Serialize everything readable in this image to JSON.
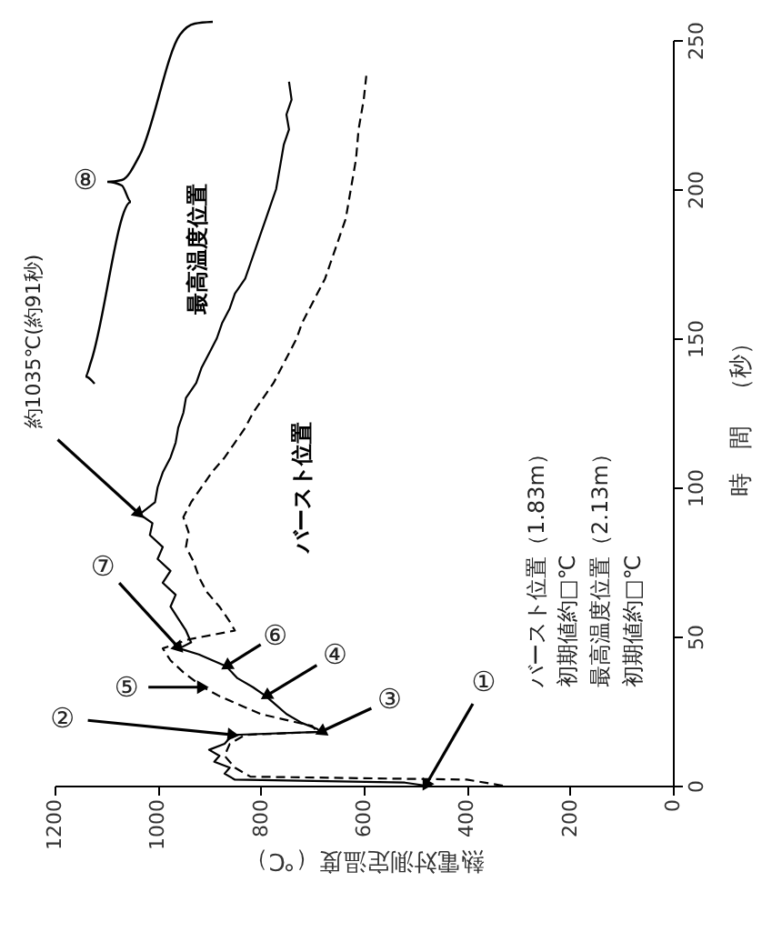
{
  "chart_data": {
    "type": "line",
    "xlabel": "熱電対測定温度（℃）",
    "ylabel": "時　間　（秒）",
    "xlim": [
      1200,
      0
    ],
    "xticks": [
      0,
      200,
      400,
      600,
      800,
      1000,
      1200
    ],
    "ylim": [
      0,
      250
    ],
    "yticks": [
      0,
      50,
      100,
      150,
      200,
      250
    ],
    "grid": false,
    "legend": false,
    "marker": "none",
    "series": [
      {
        "name": "最高温度位置",
        "color": "#000000",
        "line_style": "solid",
        "x": [
          480,
          520,
          850,
          870,
          860,
          890,
          880,
          900,
          870,
          860,
          853,
          684,
          690,
          720,
          750,
          770,
          790,
          815,
          845,
          867,
          920,
          958,
          935,
          945,
          960,
          975,
          965,
          990,
          975,
          1000,
          990,
          1015,
          1010,
          1035,
          1005,
          1000,
          990,
          975,
          965,
          960,
          950,
          945,
          925,
          915,
          900,
          885,
          875,
          860,
          850,
          830,
          820,
          810,
          800,
          790,
          780,
          770,
          765,
          760,
          755,
          745,
          750,
          740,
          745
        ],
        "values": [
          0,
          1,
          2,
          4,
          6,
          8,
          10,
          12,
          14,
          16,
          17,
          18,
          19,
          21,
          24,
          27,
          30,
          33,
          36,
          40,
          44,
          46,
          48,
          52,
          56,
          60,
          64,
          68,
          72,
          76,
          80,
          84,
          88,
          91,
          95,
          100,
          105,
          110,
          115,
          120,
          125,
          130,
          135,
          140,
          145,
          150,
          155,
          160,
          165,
          170,
          175,
          180,
          185,
          190,
          195,
          200,
          205,
          210,
          215,
          220,
          225,
          230,
          236
        ]
      },
      {
        "name": "バースト位置",
        "color": "#000000",
        "line_style": "dashed",
        "x": [
          330,
          400,
          820,
          850,
          870,
          860,
          830,
          690,
          700,
          800,
          880,
          912,
          950,
          975,
          990,
          940,
          850,
          860,
          880,
          905,
          920,
          930,
          945,
          940,
          950,
          935,
          915,
          895,
          870,
          850,
          830,
          815,
          795,
          775,
          760,
          745,
          730,
          720,
          705,
          690,
          675,
          665,
          655,
          645,
          635,
          630,
          625,
          615,
          610,
          600,
          595
        ],
        "values": [
          0,
          2,
          3,
          6,
          10,
          14,
          17,
          18,
          20,
          24,
          30,
          33,
          38,
          42,
          46,
          49,
          52,
          55,
          60,
          65,
          70,
          75,
          80,
          85,
          90,
          95,
          100,
          105,
          110,
          115,
          120,
          125,
          130,
          135,
          140,
          145,
          150,
          155,
          160,
          165,
          170,
          175,
          180,
          185,
          190,
          195,
          200,
          210,
          220,
          230,
          238
        ]
      }
    ],
    "annotations": [
      {
        "text": "①",
        "x": 480,
        "y": 0
      },
      {
        "text": "②",
        "x": 853,
        "y": 17
      },
      {
        "text": "③",
        "x": 684,
        "y": 18
      },
      {
        "text": "④",
        "x": 790,
        "y": 30
      },
      {
        "text": "⑤",
        "x": 912,
        "y": 33
      },
      {
        "text": "⑥",
        "x": 867,
        "y": 40
      },
      {
        "text": "⑦",
        "x": 958,
        "y": 46
      },
      {
        "text": "約1035℃(約91秒)",
        "x": 1035,
        "y": 91
      },
      "⑧",
      "バースト位置（1.83m）",
      "初期値約□℃",
      "最高温度位置（2.13m）",
      "初期値約□℃"
    ]
  }
}
